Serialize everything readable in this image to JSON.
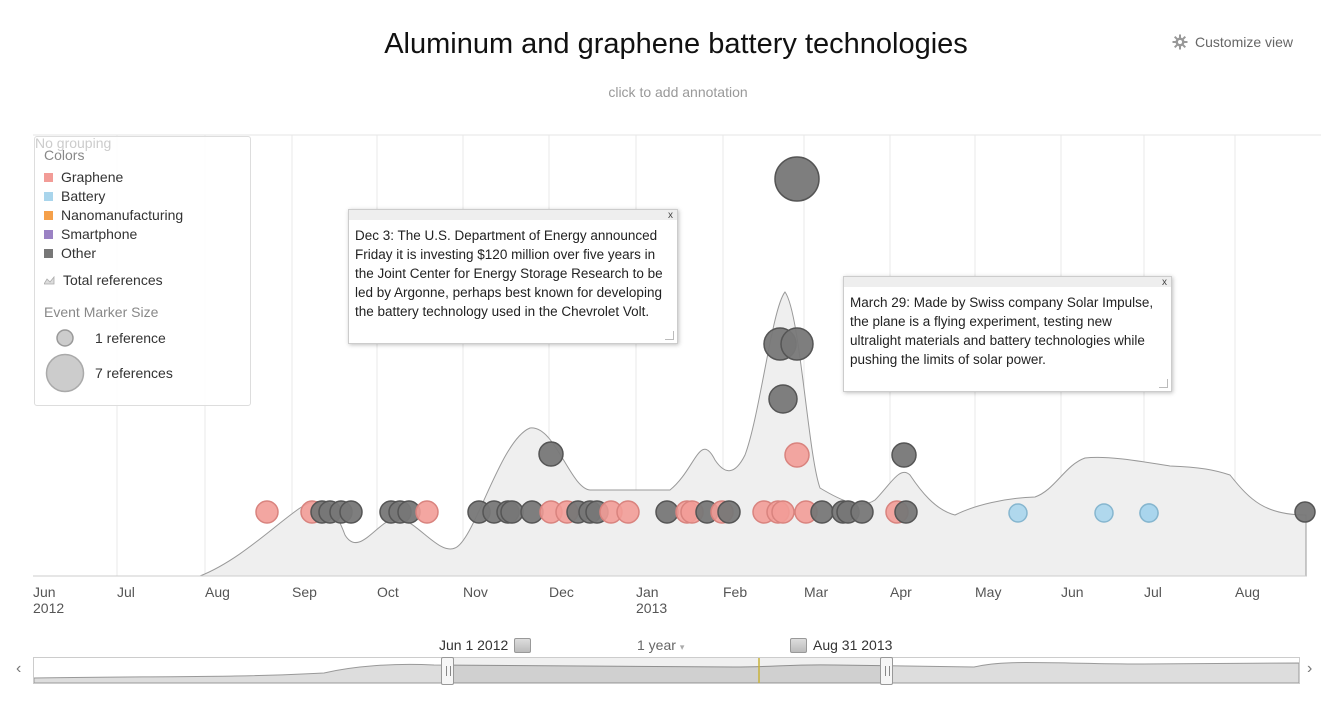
{
  "header": {
    "title": "Aluminum and graphene battery technologies",
    "subtitle": "click to add annotation",
    "customize_label": "Customize view"
  },
  "legend": {
    "ghost_label": "No grouping",
    "colors_heading": "Colors",
    "categories": [
      {
        "name": "Graphene",
        "color": "#f29c97"
      },
      {
        "name": "Battery",
        "color": "#a9d5ec"
      },
      {
        "name": "Nanomanufacturing",
        "color": "#f5a04a"
      },
      {
        "name": "Smartphone",
        "color": "#9b82c4"
      },
      {
        "name": "Other",
        "color": "#777777"
      }
    ],
    "total_label": "Total references",
    "size_heading": "Event Marker Size",
    "size_small_label": "1 reference",
    "size_large_label": "7 references"
  },
  "annotations": [
    {
      "text": "Dec 3: The U.S. Department of Energy announced Friday it is investing $120 million over five years in the Joint Center for Energy Storage Research to be led by Argonne, perhaps best known for developing the battery technology used in the Chevrolet Volt.",
      "close": "x"
    },
    {
      "text": "March 29: Made by Swiss company Solar Impulse, the plane is a flying experiment, testing new ultralight materials and battery technologies while pushing the limits of solar power.",
      "close": "x"
    }
  ],
  "axis": {
    "months": [
      {
        "label": "Jun",
        "year": "2012"
      },
      {
        "label": "Jul",
        "year": ""
      },
      {
        "label": "Aug",
        "year": ""
      },
      {
        "label": "Sep",
        "year": ""
      },
      {
        "label": "Oct",
        "year": ""
      },
      {
        "label": "Nov",
        "year": ""
      },
      {
        "label": "Dec",
        "year": ""
      },
      {
        "label": "Jan",
        "year": "2013"
      },
      {
        "label": "Feb",
        "year": ""
      },
      {
        "label": "Mar",
        "year": ""
      },
      {
        "label": "Apr",
        "year": ""
      },
      {
        "label": "May",
        "year": ""
      },
      {
        "label": "Jun",
        "year": ""
      },
      {
        "label": "Jul",
        "year": ""
      },
      {
        "label": "Aug",
        "year": ""
      }
    ]
  },
  "range": {
    "start": "Jun 1 2012",
    "span": "1 year",
    "end": "Aug 31 2013",
    "prev": "‹",
    "next": "›"
  },
  "colors": {
    "graphene": "#f29c97",
    "battery": "#a9d5ec",
    "other": "#777777",
    "area_fill": "#efefef",
    "area_stroke": "#999999"
  }
}
